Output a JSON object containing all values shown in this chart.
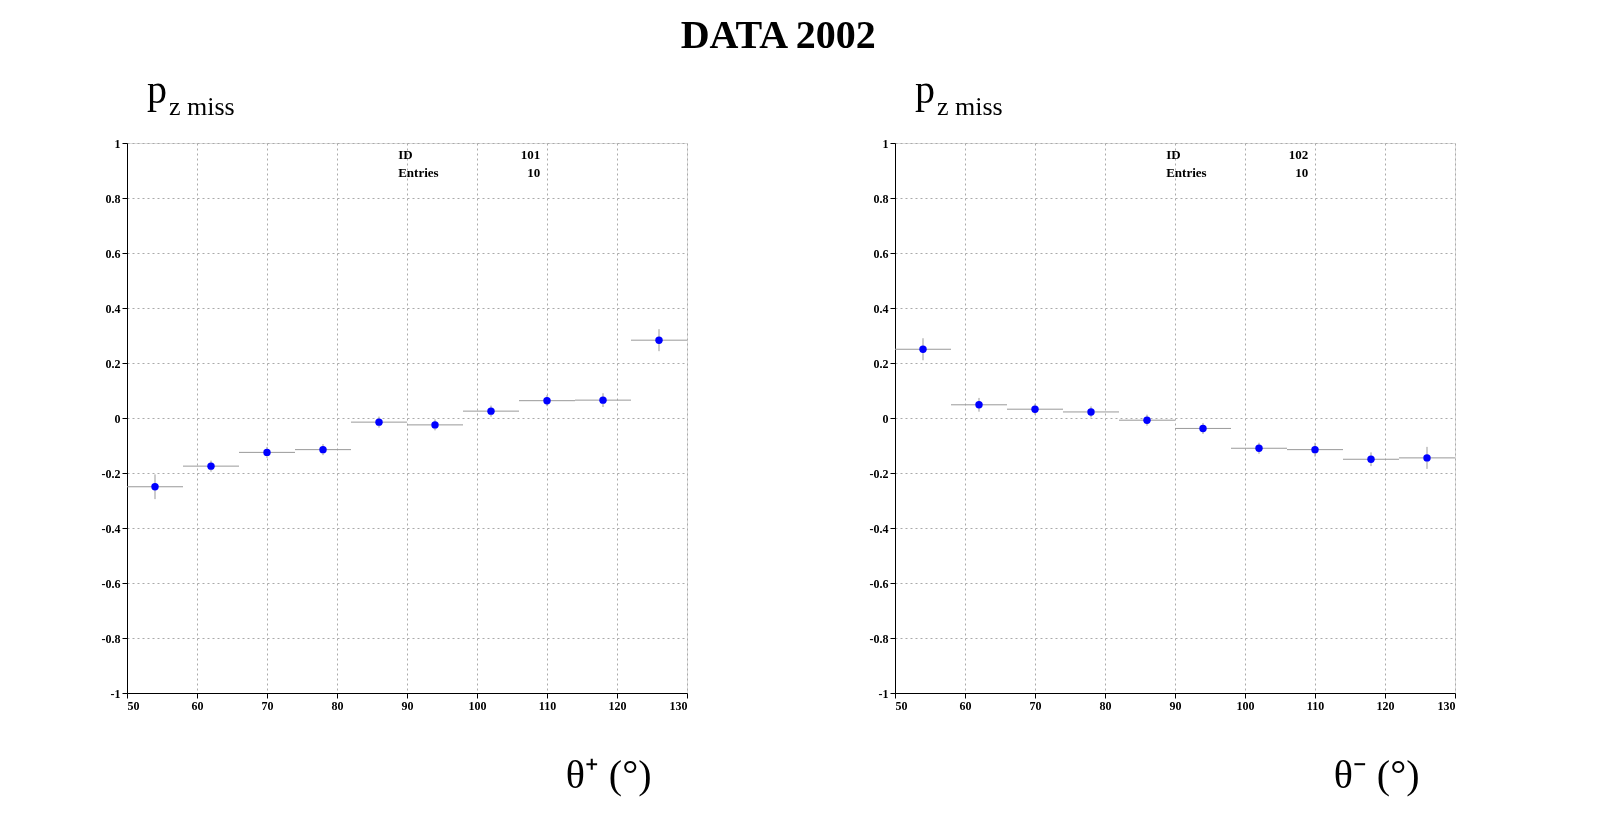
{
  "chart_data": [
    {
      "type": "scatter",
      "title": "DATA 2002",
      "ylabel": "p$_{z miss}$",
      "xlabel": "θ⁺ (°)",
      "annotations": [
        "ID",
        "101",
        "Entries",
        "10"
      ],
      "x": [
        54,
        62,
        70,
        78,
        86,
        94,
        102,
        110,
        118,
        126
      ],
      "series": [
        {
          "color": "#0000ff",
          "values": [
            -0.25,
            -0.175,
            -0.125,
            -0.115,
            -0.015,
            -0.025,
            0.025,
            0.063,
            0.065,
            0.283
          ],
          "errors": [
            0.045,
            0.02,
            0.02,
            0.02,
            0.02,
            0.02,
            0.02,
            0.02,
            0.025,
            0.04
          ],
          "xerrors": [
            4,
            4,
            4,
            4,
            4,
            4,
            4,
            4,
            4,
            4
          ]
        }
      ],
      "xlim": [
        50,
        130
      ],
      "xticks": [
        50,
        60,
        70,
        80,
        90,
        100,
        110,
        120,
        130
      ],
      "ylim": [
        -1,
        1
      ],
      "yticks": [
        -1,
        -0.8,
        -0.6,
        -0.4,
        -0.2,
        0,
        0.2,
        0.4,
        0.6,
        0.8,
        1
      ],
      "grid": true,
      "marker": "circle"
    },
    {
      "type": "scatter",
      "ylabel": "p$_{z miss}$",
      "xlabel": "θ⁻ (°)",
      "annotations": [
        "ID",
        "102",
        "Entries",
        "10"
      ],
      "x": [
        54,
        62,
        70,
        78,
        86,
        94,
        102,
        110,
        118,
        126
      ],
      "series": [
        {
          "color": "#0000ff",
          "values": [
            0.25,
            0.048,
            0.032,
            0.022,
            -0.008,
            -0.038,
            -0.11,
            -0.115,
            -0.15,
            -0.145
          ],
          "errors": [
            0.04,
            0.025,
            0.02,
            0.02,
            0.02,
            0.02,
            0.02,
            0.025,
            0.025,
            0.04
          ],
          "xerrors": [
            4,
            4,
            4,
            4,
            4,
            4,
            4,
            4,
            4,
            4
          ]
        }
      ],
      "xlim": [
        50,
        130
      ],
      "xticks": [
        50,
        60,
        70,
        80,
        90,
        100,
        110,
        120,
        130
      ],
      "ylim": [
        -1,
        1
      ],
      "yticks": [
        -1,
        -0.8,
        -0.6,
        -0.4,
        -0.2,
        0,
        0.2,
        0.4,
        0.6,
        0.8,
        1
      ],
      "grid": true,
      "marker": "circle"
    }
  ]
}
